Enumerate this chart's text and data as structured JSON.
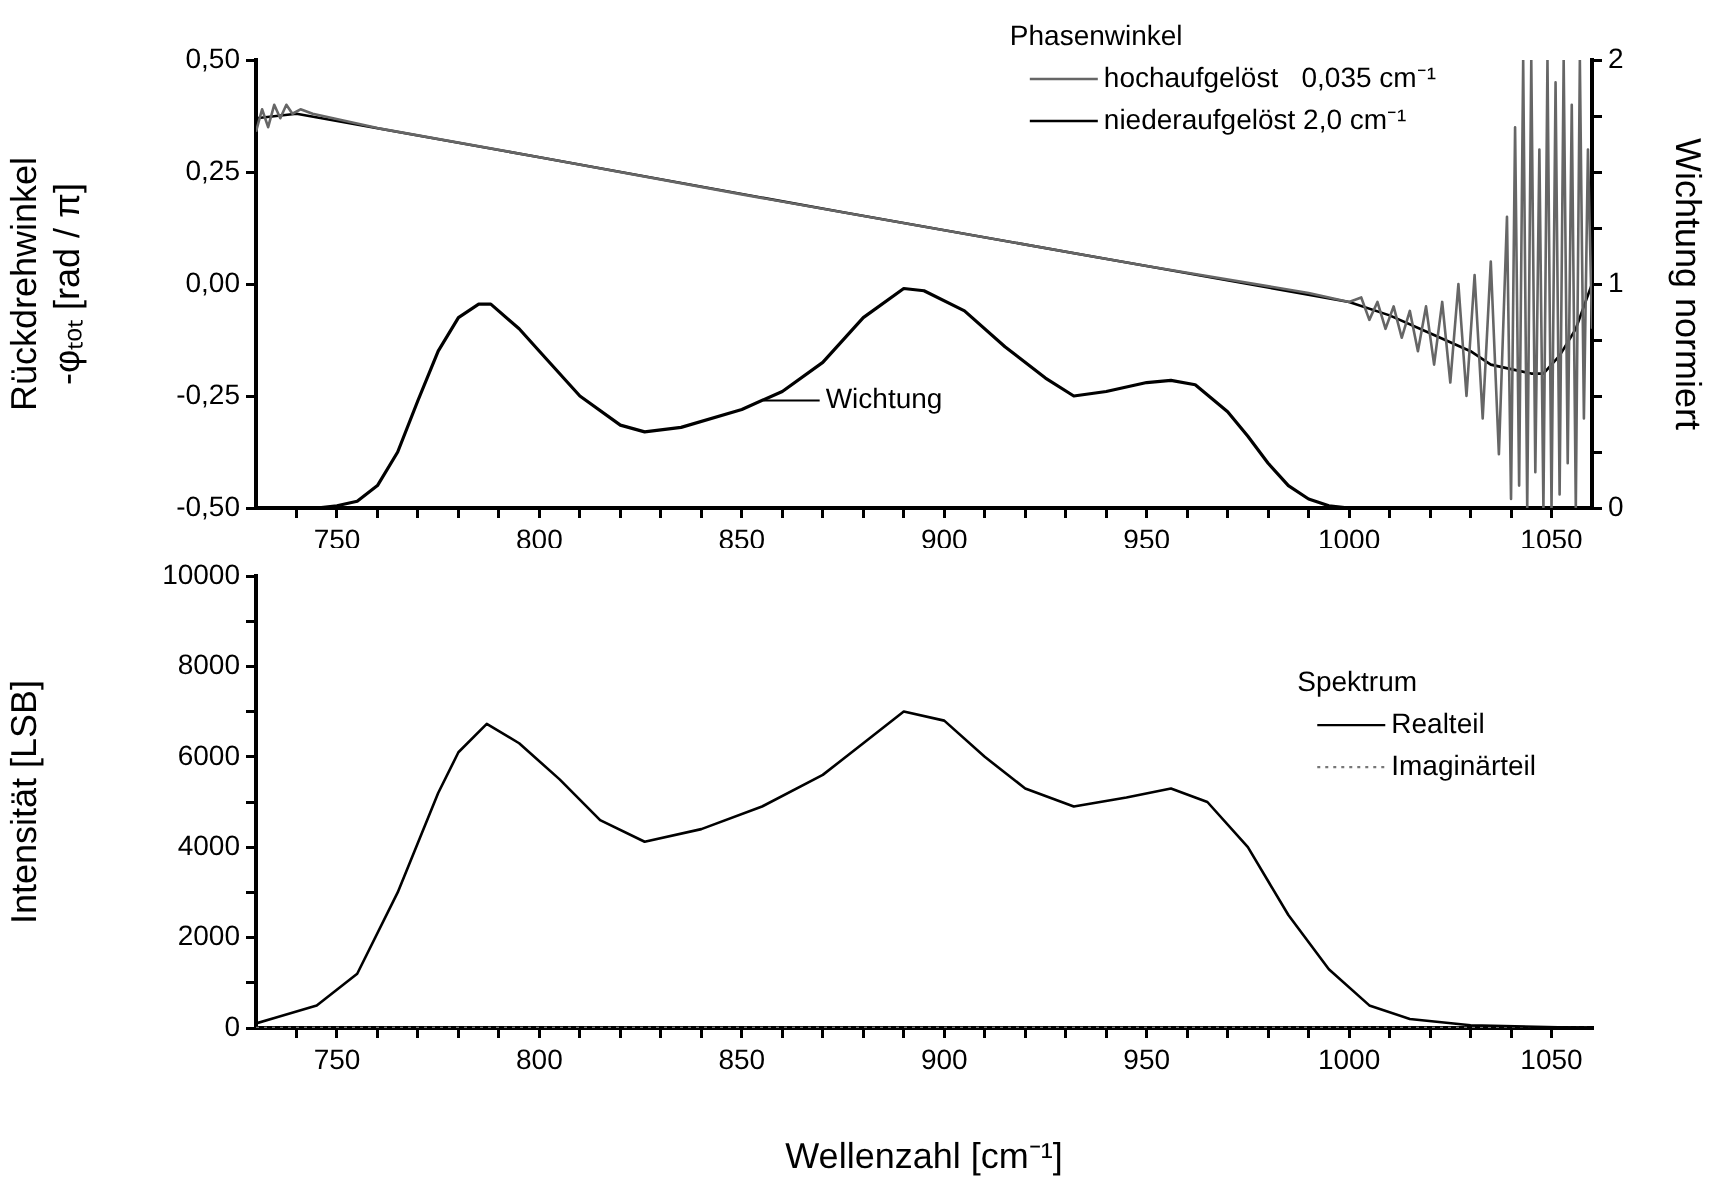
{
  "chart_data": [
    {
      "type": "line",
      "ylabel": "Rückdrehwinkel\n-φₜₒₜ [rad / π]",
      "y2label": "Wichtung normiert",
      "legend_title": "Phasenwinkel",
      "legend": "top right",
      "marker": "none",
      "grid": false,
      "xlim": [
        730,
        1060
      ],
      "xticks": [
        {
          "value": 740,
          "label": null
        },
        {
          "value": 750,
          "label": "750"
        },
        {
          "value": 760,
          "label": null
        },
        {
          "value": 770,
          "label": null
        },
        {
          "value": 780,
          "label": null
        },
        {
          "value": 790,
          "label": null
        },
        {
          "value": 800,
          "label": "800"
        },
        {
          "value": 810,
          "label": null
        },
        {
          "value": 820,
          "label": null
        },
        {
          "value": 830,
          "label": null
        },
        {
          "value": 840,
          "label": null
        },
        {
          "value": 850,
          "label": "850"
        },
        {
          "value": 860,
          "label": null
        },
        {
          "value": 870,
          "label": null
        },
        {
          "value": 880,
          "label": null
        },
        {
          "value": 890,
          "label": null
        },
        {
          "value": 900,
          "label": "900"
        },
        {
          "value": 910,
          "label": null
        },
        {
          "value": 920,
          "label": null
        },
        {
          "value": 930,
          "label": null
        },
        {
          "value": 940,
          "label": null
        },
        {
          "value": 950,
          "label": "950"
        },
        {
          "value": 960,
          "label": null
        },
        {
          "value": 970,
          "label": null
        },
        {
          "value": 980,
          "label": null
        },
        {
          "value": 990,
          "label": null
        },
        {
          "value": 1000,
          "label": "1000"
        },
        {
          "value": 1010,
          "label": null
        },
        {
          "value": 1020,
          "label": null
        },
        {
          "value": 1030,
          "label": null
        },
        {
          "value": 1040,
          "label": null
        },
        {
          "value": 1050,
          "label": "1050"
        }
      ],
      "ylim": [
        -0.5,
        0.5
      ],
      "yticks": [
        {
          "value": -0.5,
          "label": "-0,50"
        },
        {
          "value": -0.25,
          "label": "-0,25"
        },
        {
          "value": 0,
          "label": "0,00"
        },
        {
          "value": 0.25,
          "label": "0,25"
        },
        {
          "value": 0.5,
          "label": "0,50"
        }
      ],
      "y2lim": [
        0,
        2
      ],
      "y2ticks": [
        0,
        {
          "value": 0.25,
          "label": null
        },
        {
          "value": 0.5,
          "label": null
        },
        {
          "value": 0.75,
          "label": null
        },
        1,
        {
          "value": 1.25,
          "label": null
        },
        {
          "value": 1.5,
          "label": null
        },
        {
          "value": 1.75,
          "label": null
        },
        2
      ],
      "series": [
        {
          "name": "hochaufgelöst   0,035 cm⁻¹",
          "color": "#666666",
          "x": [
            730,
            731.5,
            733,
            734.5,
            736,
            737.5,
            739,
            741,
            744,
            760,
            800,
            850,
            900,
            950,
            990,
            1000,
            1003,
            1005,
            1007,
            1009,
            1011,
            1013,
            1015,
            1017,
            1019,
            1021,
            1023,
            1025,
            1027,
            1029,
            1031,
            1033,
            1035,
            1037,
            1039,
            1040,
            1041,
            1042,
            1043,
            1044,
            1045,
            1046,
            1047,
            1048,
            1049,
            1050,
            1051,
            1052,
            1053,
            1054,
            1055,
            1056,
            1057,
            1058,
            1059,
            1060
          ],
          "values": [
            0.34,
            0.39,
            0.35,
            0.4,
            0.37,
            0.4,
            0.38,
            0.39,
            0.38,
            0.348,
            0.283,
            0.2,
            0.12,
            0.04,
            -0.02,
            -0.04,
            -0.03,
            -0.08,
            -0.04,
            -0.1,
            -0.05,
            -0.12,
            -0.06,
            -0.15,
            -0.05,
            -0.18,
            -0.04,
            -0.22,
            0.0,
            -0.25,
            0.02,
            -0.3,
            0.05,
            -0.38,
            0.15,
            -0.48,
            0.35,
            -0.45,
            0.5,
            -0.5,
            0.5,
            -0.42,
            0.3,
            -0.5,
            0.5,
            -0.5,
            0.45,
            -0.47,
            0.5,
            -0.4,
            0.4,
            -0.5,
            0.5,
            -0.3,
            0.3,
            -0.1
          ]
        },
        {
          "name": "niederaufgelöst 2,0 cm⁻¹",
          "color": "#000000",
          "x": [
            730,
            740,
            800,
            875,
            950,
            1000,
            1010,
            1020,
            1030,
            1035,
            1040,
            1045,
            1048,
            1052,
            1056,
            1060
          ],
          "values": [
            0.37,
            0.38,
            0.283,
            0.16,
            0.04,
            -0.04,
            -0.07,
            -0.11,
            -0.15,
            -0.18,
            -0.19,
            -0.2,
            -0.2,
            -0.16,
            -0.1,
            0.0
          ]
        },
        {
          "name": "Wichtung",
          "color": "#000000",
          "axis": "y2",
          "x": [
            730,
            745,
            750,
            755,
            760,
            765,
            770,
            775,
            780,
            785,
            788,
            795,
            800,
            810,
            820,
            826,
            835,
            850,
            860,
            870,
            880,
            890,
            895,
            905,
            915,
            925,
            932,
            940,
            950,
            956,
            962,
            970,
            975,
            980,
            985,
            990,
            995,
            1000,
            1060
          ],
          "values": [
            0,
            0,
            0.01,
            0.03,
            0.1,
            0.25,
            0.48,
            0.7,
            0.85,
            0.91,
            0.91,
            0.8,
            0.7,
            0.5,
            0.37,
            0.34,
            0.36,
            0.44,
            0.52,
            0.65,
            0.85,
            0.98,
            0.97,
            0.88,
            0.72,
            0.58,
            0.5,
            0.52,
            0.56,
            0.57,
            0.55,
            0.43,
            0.32,
            0.2,
            0.1,
            0.04,
            0.01,
            0,
            0
          ]
        }
      ]
    },
    {
      "type": "line",
      "xlabel": "Wellenzahl [cm⁻¹]",
      "ylabel": "Intensität [LSB]",
      "legend_title": "Spektrum",
      "legend": "right",
      "marker": "none",
      "grid": false,
      "xlim": [
        730,
        1060
      ],
      "xticks": [
        {
          "value": 740,
          "label": null
        },
        {
          "value": 750,
          "label": "750"
        },
        {
          "value": 760,
          "label": null
        },
        {
          "value": 770,
          "label": null
        },
        {
          "value": 780,
          "label": null
        },
        {
          "value": 790,
          "label": null
        },
        {
          "value": 800,
          "label": "800"
        },
        {
          "value": 810,
          "label": null
        },
        {
          "value": 820,
          "label": null
        },
        {
          "value": 830,
          "label": null
        },
        {
          "value": 840,
          "label": null
        },
        {
          "value": 850,
          "label": "850"
        },
        {
          "value": 860,
          "label": null
        },
        {
          "value": 870,
          "label": null
        },
        {
          "value": 880,
          "label": null
        },
        {
          "value": 890,
          "label": null
        },
        {
          "value": 900,
          "label": "900"
        },
        {
          "value": 910,
          "label": null
        },
        {
          "value": 920,
          "label": null
        },
        {
          "value": 930,
          "label": null
        },
        {
          "value": 940,
          "label": null
        },
        {
          "value": 950,
          "label": "950"
        },
        {
          "value": 960,
          "label": null
        },
        {
          "value": 970,
          "label": null
        },
        {
          "value": 980,
          "label": null
        },
        {
          "value": 990,
          "label": null
        },
        {
          "value": 1000,
          "label": "1000"
        },
        {
          "value": 1010,
          "label": null
        },
        {
          "value": 1020,
          "label": null
        },
        {
          "value": 1030,
          "label": null
        },
        {
          "value": 1040,
          "label": null
        },
        {
          "value": 1050,
          "label": "1050"
        }
      ],
      "ylim": [
        0,
        10000
      ],
      "yticks": [
        0,
        {
          "value": 1000,
          "label": null
        },
        2000,
        {
          "value": 3000,
          "label": null
        },
        4000,
        {
          "value": 5000,
          "label": null
        },
        6000,
        {
          "value": 7000,
          "label": null
        },
        8000,
        {
          "value": 9000,
          "label": null
        },
        10000
      ],
      "series": [
        {
          "name": "Realteil",
          "color": "#000000",
          "x": [
            730,
            745,
            755,
            765,
            775,
            780,
            787,
            795,
            805,
            815,
            826,
            840,
            855,
            870,
            880,
            890,
            900,
            910,
            920,
            932,
            945,
            956,
            965,
            975,
            985,
            995,
            1005,
            1015,
            1030,
            1060
          ],
          "values": [
            100,
            500,
            1200,
            3000,
            5200,
            6100,
            6730,
            6300,
            5500,
            4600,
            4120,
            4400,
            4900,
            5600,
            6300,
            7000,
            6800,
            6000,
            5300,
            4900,
            5100,
            5300,
            5000,
            4000,
            2500,
            1300,
            500,
            200,
            60,
            0
          ]
        },
        {
          "name": "Imaginärteil",
          "color": "#777777",
          "line_style": "dotted",
          "x": [
            730,
            900,
            1060
          ],
          "values": [
            0,
            0,
            0
          ]
        }
      ]
    }
  ]
}
